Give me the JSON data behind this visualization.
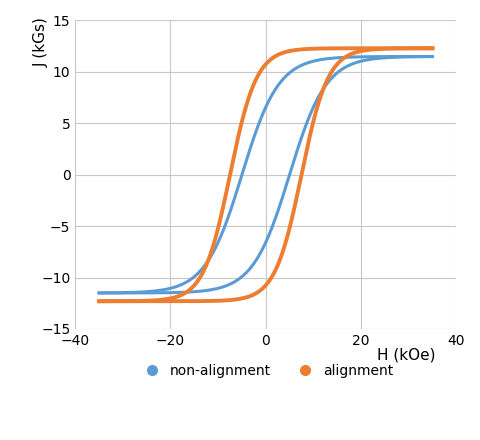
{
  "title": "",
  "xlabel": "H (kOe)",
  "ylabel": "J (kGs)",
  "xlim": [
    -40,
    40
  ],
  "ylim": [
    -15,
    15
  ],
  "xticks": [
    -40,
    -20,
    0,
    20,
    40
  ],
  "yticks": [
    -15,
    -10,
    -5,
    0,
    5,
    10,
    15
  ],
  "color_nonalign": "#5B9BD5",
  "color_align": "#ED7D31",
  "legend_labels": [
    "non-alignment",
    "alignment"
  ],
  "background_color": "#FFFFFF",
  "grid_color": "#C8C8C8",
  "linewidth_nonalign": 2.2,
  "linewidth_align": 2.8,
  "Hc_na": 5.0,
  "Ms_na": 11.5,
  "k_na": 0.13,
  "Hc_al": 7.5,
  "Ms_al": 12.3,
  "k_al": 0.18
}
